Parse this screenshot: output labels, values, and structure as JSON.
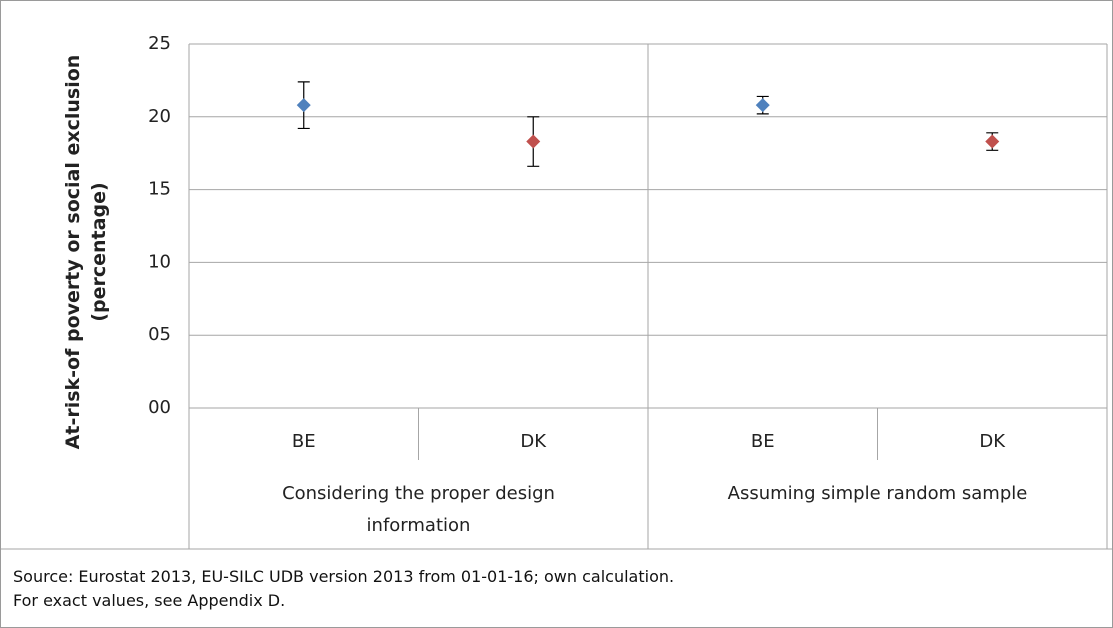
{
  "chart_data": {
    "type": "errorbar",
    "y_label": "At-risk-of poverty or social exclusion (percentage)",
    "groups": [
      "Considering the proper design information",
      "Assuming simple random sample"
    ],
    "categories": [
      "BE",
      "DK",
      "BE",
      "DK"
    ],
    "values": [
      20.8,
      18.3,
      20.8,
      18.3
    ],
    "errors": [
      1.6,
      1.7,
      0.6,
      0.6
    ],
    "colors": [
      "#4f81bd",
      "#c0504d",
      "#4f81bd",
      "#c0504d"
    ],
    "ylim": [
      0,
      25
    ],
    "yticks": [
      {
        "value": 0,
        "label": "00"
      },
      {
        "value": 5,
        "label": "05"
      },
      10,
      15,
      20,
      25
    ],
    "grid": true,
    "notes": [
      "Source: Eurostat 2013, EU-SILC UDB version 2013 from 01-01-16; own calculation.",
      "For exact values, see Appendix D."
    ]
  }
}
